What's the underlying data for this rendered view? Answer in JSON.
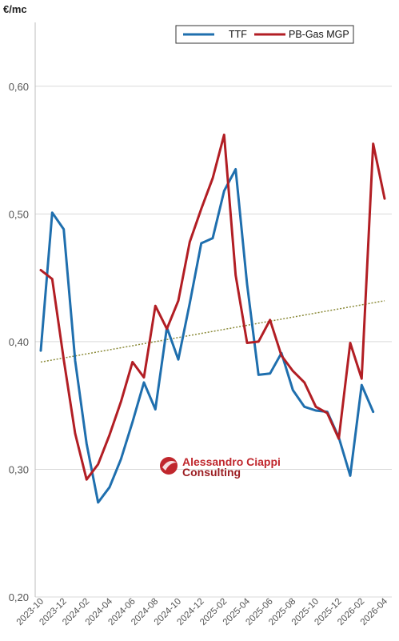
{
  "chart_data": {
    "type": "line",
    "unit_label": "€/mc",
    "x": [
      "2023-10",
      "2023-11",
      "2023-12",
      "2024-01",
      "2024-02",
      "2024-03",
      "2024-04",
      "2024-05",
      "2024-06",
      "2024-07",
      "2024-08",
      "2024-09",
      "2024-10",
      "2024-11",
      "2024-12",
      "2025-01",
      "2025-02",
      "2025-03",
      "2025-04",
      "2025-05",
      "2025-06",
      "2025-07",
      "2025-08",
      "2025-09",
      "2025-10",
      "2025-11",
      "2025-12",
      "2026-01",
      "2026-02",
      "2026-03",
      "2026-04"
    ],
    "x_tick_labels": [
      "2023-10",
      "2023-12",
      "2024-02",
      "2024-04",
      "2024-06",
      "2024-08",
      "2024-10",
      "2024-12",
      "2025-02",
      "2025-04",
      "2025-06",
      "2025-08",
      "2025-10",
      "2025-12",
      "2026-02",
      "2026-04"
    ],
    "y_ticks": [
      "0,20",
      "0,30",
      "0,40",
      "0,50",
      "0,60"
    ],
    "ylim": [
      0.2,
      0.65
    ],
    "grid": true,
    "legend_position": "top-right",
    "series": [
      {
        "name": "TTF",
        "color": "#1f6fae",
        "values": [
          0.393,
          0.501,
          0.488,
          0.385,
          0.32,
          0.274,
          0.286,
          0.308,
          0.337,
          0.368,
          0.347,
          0.411,
          0.386,
          0.43,
          0.477,
          0.481,
          0.518,
          0.535,
          0.445,
          0.374,
          0.375,
          0.391,
          0.362,
          0.349,
          0.346,
          0.345,
          0.325,
          0.295,
          0.366,
          0.345,
          null
        ]
      },
      {
        "name": "PB-Gas MGP",
        "color": "#b21e24",
        "values": [
          0.456,
          0.449,
          0.386,
          0.328,
          0.292,
          0.304,
          0.327,
          0.353,
          0.384,
          0.372,
          0.428,
          0.41,
          0.432,
          0.478,
          0.504,
          0.528,
          0.562,
          0.452,
          0.399,
          0.4,
          0.417,
          0.389,
          0.377,
          0.368,
          0.349,
          0.344,
          0.324,
          0.399,
          0.371,
          0.555,
          0.512
        ]
      }
    ],
    "trendline": {
      "series": "PB-Gas MGP",
      "style": "dotted",
      "color": "#8b8b3a",
      "start_value": 0.384,
      "end_value": 0.432
    }
  },
  "watermark": {
    "line1": "Alessandro Ciappi",
    "line2": "Consulting",
    "color": "#c0272d"
  }
}
